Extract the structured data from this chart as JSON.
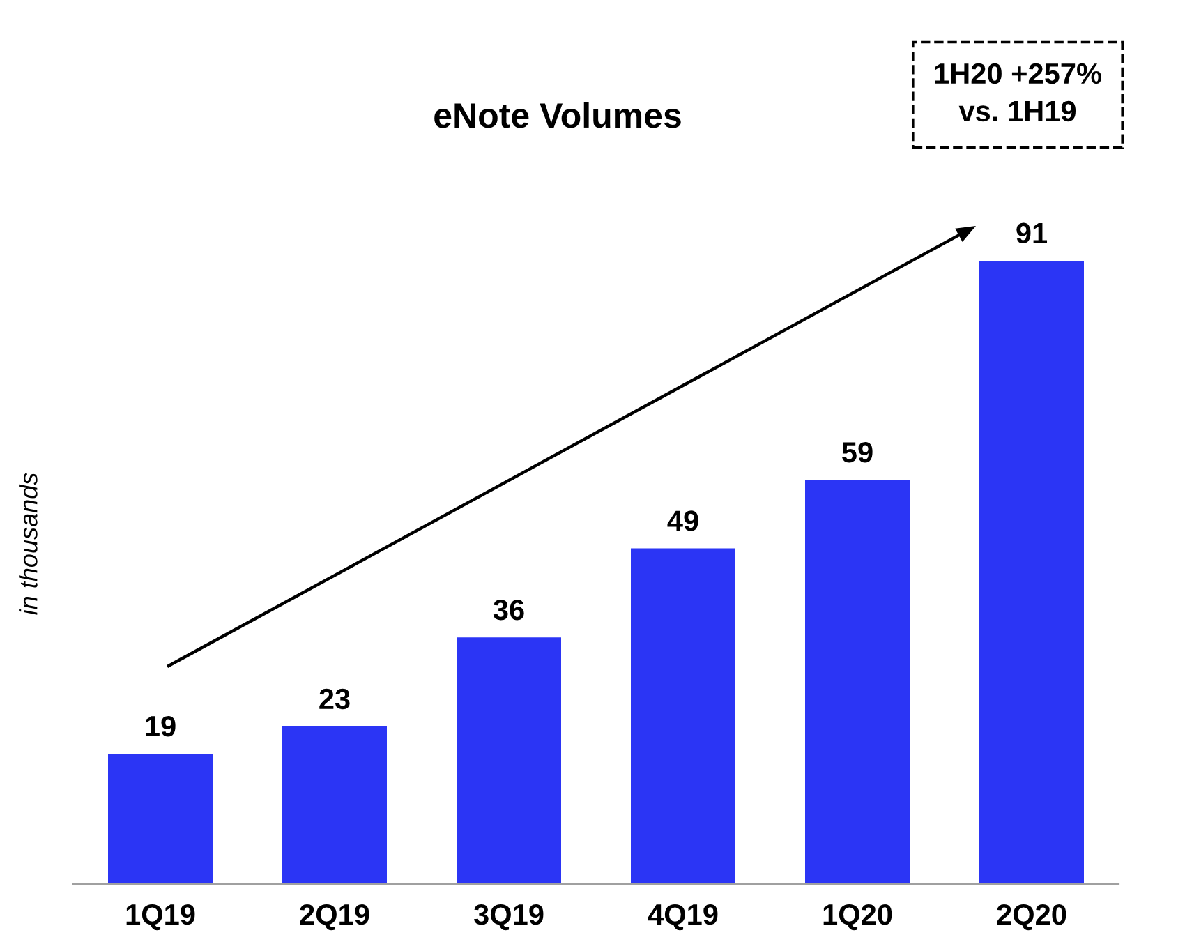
{
  "chart_data": {
    "type": "bar",
    "title": "eNote Volumes",
    "ylabel": "in thousands",
    "categories": [
      "1Q19",
      "2Q19",
      "3Q19",
      "4Q19",
      "1Q20",
      "2Q20"
    ],
    "values": [
      19,
      23,
      36,
      49,
      59,
      91
    ],
    "color": "#2b35f5",
    "data_labels": true,
    "annotations": [
      "1H20 +257%\nvs. 1H19"
    ],
    "grid": false,
    "legend": false
  }
}
